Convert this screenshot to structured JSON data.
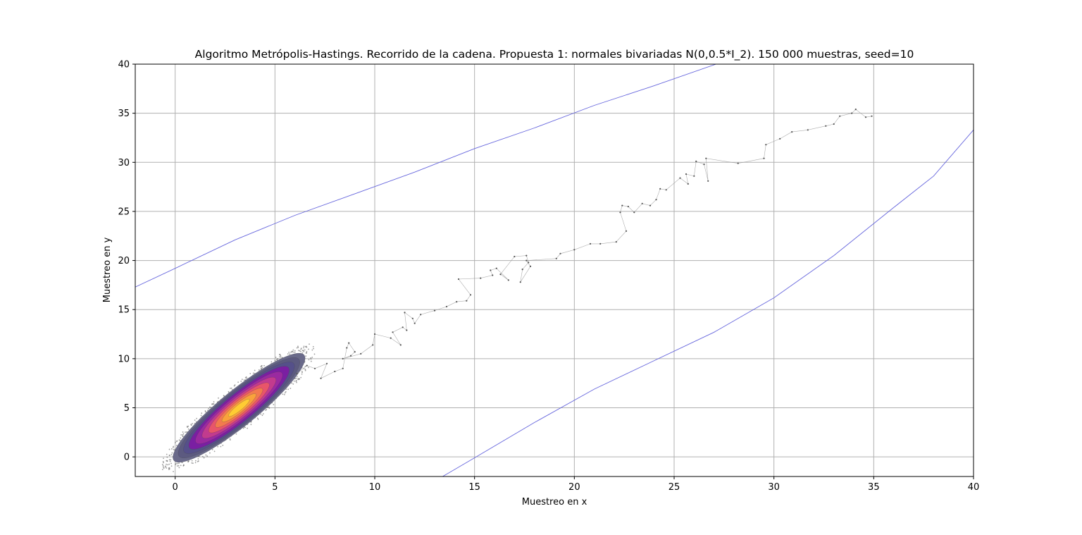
{
  "chart_data": {
    "type": "scatter",
    "title": "Algoritmo Metrópolis-Hastings. Recorrido de la cadena. Propuesta 1: normales bivariadas N(0,0.5*I_2). 150 000 muestras, seed=10",
    "xlabel": "Muestreo en x",
    "ylabel": "Muestreo en y",
    "xlim": [
      -2,
      40
    ],
    "ylim": [
      -2,
      40
    ],
    "xticks": [
      0,
      5,
      10,
      15,
      20,
      25,
      30,
      35,
      40
    ],
    "yticks": [
      0,
      5,
      10,
      15,
      20,
      25,
      30,
      35,
      40
    ],
    "grid": true,
    "colors": {
      "grid": "#b0b0b0",
      "chain": "#555555",
      "boundary": "#6666dd",
      "density_outer": "#6a6a8a",
      "density_mid": "#7a1fa2",
      "density_inner": "#e8556a",
      "density_core": "#ffcc33"
    },
    "series": [
      {
        "kind": "chain_path",
        "points": [
          [
            6.1,
            8.5
          ],
          [
            6.6,
            9.3
          ],
          [
            7.0,
            9.0
          ],
          [
            7.6,
            9.5
          ],
          [
            7.3,
            8.0
          ],
          [
            8.0,
            8.7
          ],
          [
            8.4,
            9.0
          ],
          [
            8.6,
            11.1
          ],
          [
            8.7,
            11.6
          ],
          [
            9.0,
            10.7
          ],
          [
            8.8,
            10.3
          ],
          [
            8.4,
            10.0
          ],
          [
            9.3,
            10.5
          ],
          [
            9.9,
            11.4
          ],
          [
            10.0,
            12.5
          ],
          [
            10.8,
            12.1
          ],
          [
            11.3,
            11.4
          ],
          [
            10.9,
            12.7
          ],
          [
            11.4,
            13.2
          ],
          [
            11.6,
            12.9
          ],
          [
            11.5,
            14.7
          ],
          [
            11.9,
            14.1
          ],
          [
            12.0,
            13.6
          ],
          [
            12.3,
            14.5
          ],
          [
            13.0,
            14.9
          ],
          [
            13.6,
            15.3
          ],
          [
            14.1,
            15.8
          ],
          [
            14.6,
            15.9
          ],
          [
            14.8,
            16.5
          ],
          [
            14.2,
            18.1
          ],
          [
            15.3,
            18.2
          ],
          [
            15.9,
            18.5
          ],
          [
            15.8,
            19.0
          ],
          [
            16.1,
            19.2
          ],
          [
            16.7,
            18.0
          ],
          [
            16.3,
            18.6
          ],
          [
            17.0,
            20.4
          ],
          [
            17.6,
            20.5
          ],
          [
            17.7,
            19.8
          ],
          [
            17.4,
            19.1
          ],
          [
            17.3,
            17.8
          ],
          [
            17.8,
            19.4
          ],
          [
            17.6,
            20.0
          ],
          [
            19.1,
            20.2
          ],
          [
            19.3,
            20.7
          ],
          [
            20.0,
            21.1
          ],
          [
            20.8,
            21.7
          ],
          [
            21.3,
            21.7
          ],
          [
            22.1,
            21.9
          ],
          [
            22.6,
            23.0
          ],
          [
            22.3,
            24.9
          ],
          [
            22.4,
            25.6
          ],
          [
            22.7,
            25.5
          ],
          [
            23.0,
            24.9
          ],
          [
            23.4,
            25.8
          ],
          [
            23.8,
            25.6
          ],
          [
            24.1,
            26.2
          ],
          [
            24.3,
            27.3
          ],
          [
            24.6,
            27.2
          ],
          [
            25.3,
            28.4
          ],
          [
            25.7,
            27.8
          ],
          [
            25.6,
            28.8
          ],
          [
            26.0,
            28.6
          ],
          [
            26.1,
            30.1
          ],
          [
            26.5,
            29.8
          ],
          [
            26.7,
            28.1
          ],
          [
            26.6,
            30.4
          ],
          [
            28.2,
            29.9
          ],
          [
            29.5,
            30.4
          ],
          [
            29.6,
            31.8
          ],
          [
            30.3,
            32.4
          ],
          [
            30.9,
            33.1
          ],
          [
            31.7,
            33.3
          ],
          [
            32.6,
            33.7
          ],
          [
            33.0,
            33.9
          ],
          [
            33.3,
            34.7
          ],
          [
            33.9,
            35.0
          ],
          [
            34.1,
            35.4
          ],
          [
            34.6,
            34.6
          ],
          [
            34.9,
            34.7
          ]
        ]
      },
      {
        "kind": "boundary_upper",
        "points": [
          [
            -2,
            17.3
          ],
          [
            0,
            19.2
          ],
          [
            3,
            22.1
          ],
          [
            6,
            24.6
          ],
          [
            9,
            26.8
          ],
          [
            12,
            29.0
          ],
          [
            15,
            31.4
          ],
          [
            18,
            33.5
          ],
          [
            21,
            35.8
          ],
          [
            24,
            37.8
          ],
          [
            27.1,
            40
          ]
        ]
      },
      {
        "kind": "boundary_lower",
        "points": [
          [
            13.4,
            -2
          ],
          [
            15,
            -0.1
          ],
          [
            18,
            3.5
          ],
          [
            21,
            6.9
          ],
          [
            24,
            9.8
          ],
          [
            27,
            12.7
          ],
          [
            30,
            16.2
          ],
          [
            33,
            20.5
          ],
          [
            36,
            25.4
          ],
          [
            38,
            28.6
          ],
          [
            40,
            33.3
          ]
        ]
      },
      {
        "kind": "density_ellipse",
        "center": [
          3.2,
          5.0
        ],
        "semi_major": 4.2,
        "semi_minor": 0.9,
        "angle_deg": 39
      }
    ]
  }
}
